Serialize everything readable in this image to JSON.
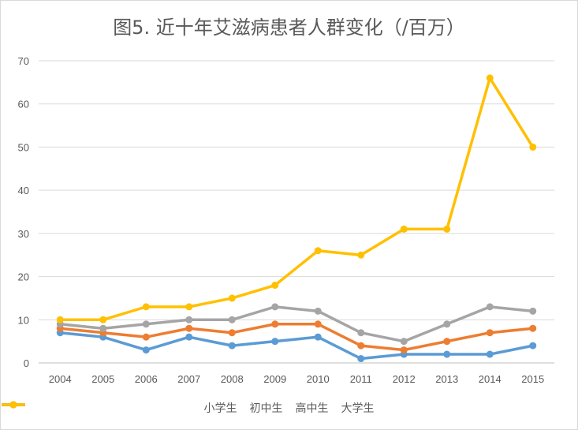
{
  "chart_data": {
    "type": "line",
    "title": "图5. 近十年艾滋病患者人群变化（/百万）",
    "xlabel": "",
    "ylabel": "",
    "categories": [
      "2004",
      "2005",
      "2006",
      "2007",
      "2008",
      "2009",
      "2010",
      "2011",
      "2012",
      "2013",
      "2014",
      "2015"
    ],
    "ylim": [
      0,
      70
    ],
    "yticks": [
      0,
      10,
      20,
      30,
      40,
      50,
      60,
      70
    ],
    "grid": true,
    "legend_position": "bottom",
    "series": [
      {
        "name": "小学生",
        "color": "#5b9bd5",
        "values": [
          7,
          6,
          3,
          6,
          4,
          5,
          6,
          1,
          2,
          2,
          2,
          4
        ]
      },
      {
        "name": "初中生",
        "color": "#ed7d31",
        "values": [
          8,
          7,
          6,
          8,
          7,
          9,
          9,
          4,
          3,
          5,
          7,
          8
        ]
      },
      {
        "name": "高中生",
        "color": "#a5a5a5",
        "values": [
          9,
          8,
          9,
          10,
          10,
          13,
          12,
          7,
          5,
          9,
          13,
          12
        ]
      },
      {
        "name": "大学生",
        "color": "#ffc000",
        "values": [
          10,
          10,
          13,
          13,
          15,
          18,
          26,
          25,
          31,
          31,
          66,
          50
        ]
      }
    ]
  }
}
